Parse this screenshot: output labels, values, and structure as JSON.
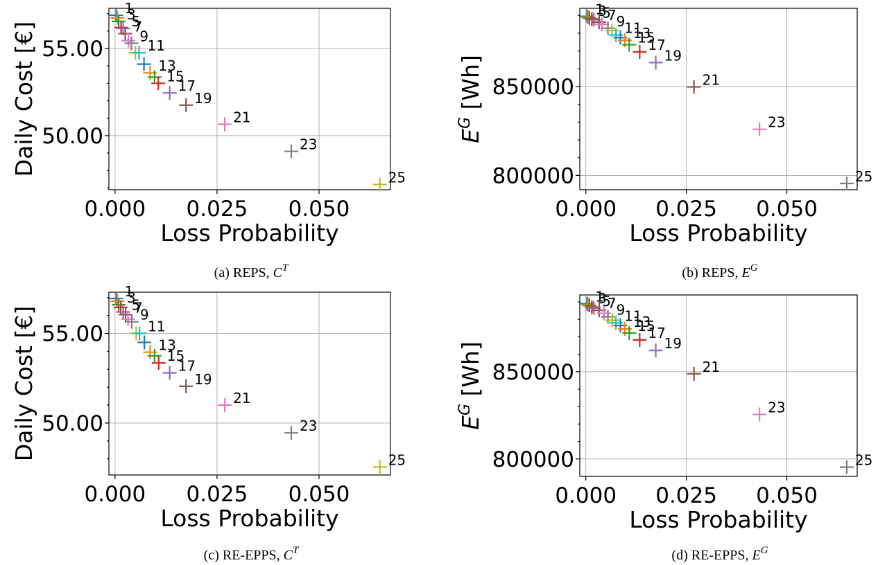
{
  "colors": {
    "palette": [
      "#1f77b4",
      "#ff7f0e",
      "#2ca02c",
      "#d62728",
      "#9467bd",
      "#8c564b",
      "#e377c2",
      "#7f7f7f",
      "#bcbd22",
      "#17becf"
    ]
  },
  "chart_data": [
    {
      "type": "scatter",
      "marker": "plus",
      "caption_text": "(a) REPS, ",
      "caption_sym": "C",
      "caption_sup": "T",
      "xlabel": "Loss Probability",
      "ylabel_text": "Daily Cost [€]",
      "ylabel_sym": "",
      "ylabel_sup": "",
      "ylabel_rest": "",
      "xlim": [
        -0.0015,
        0.0675
      ],
      "ylim": [
        46.9,
        57.3
      ],
      "xticks": [
        0.0,
        0.025,
        0.05
      ],
      "xtick_labels": [
        "0.000",
        "0.025",
        "0.050"
      ],
      "yticks": [
        50,
        55
      ],
      "ytick_labels": [
        "50.00",
        "55.00"
      ],
      "minor_yticks": [
        47,
        48,
        49,
        51,
        52,
        53,
        54,
        56,
        57
      ],
      "points": [
        {
          "label": "1",
          "x": 0.0003,
          "y": 56.9
        },
        {
          "label": "",
          "x": 0.0006,
          "y": 56.75
        },
        {
          "label": "3",
          "x": 0.0009,
          "y": 56.55
        },
        {
          "label": "",
          "x": 0.0015,
          "y": 56.2
        },
        {
          "label": "5",
          "x": 0.002,
          "y": 56.15
        },
        {
          "label": "7",
          "x": 0.0025,
          "y": 55.85
        },
        {
          "label": "",
          "x": 0.0033,
          "y": 55.45
        },
        {
          "label": "9",
          "x": 0.004,
          "y": 55.3
        },
        {
          "label": "",
          "x": 0.005,
          "y": 54.75
        },
        {
          "label": "11",
          "x": 0.0059,
          "y": 54.75
        },
        {
          "label": "",
          "x": 0.0071,
          "y": 54.1
        },
        {
          "label": "13",
          "x": 0.0086,
          "y": 53.6
        },
        {
          "label": "",
          "x": 0.0097,
          "y": 53.35
        },
        {
          "label": "15",
          "x": 0.0106,
          "y": 53.0
        },
        {
          "label": "17",
          "x": 0.0134,
          "y": 52.45
        },
        {
          "label": "19",
          "x": 0.0174,
          "y": 51.75
        },
        {
          "label": "21",
          "x": 0.0269,
          "y": 50.65
        },
        {
          "label": "23",
          "x": 0.0432,
          "y": 49.1
        },
        {
          "label": "25",
          "x": 0.0649,
          "y": 47.2
        }
      ]
    },
    {
      "type": "scatter",
      "marker": "plus",
      "caption_text": "(b) REPS, ",
      "caption_sym": "E",
      "caption_sup": "G",
      "xlabel": "Loss Probability",
      "ylabel_text": "",
      "ylabel_sym": "E",
      "ylabel_sup": "G",
      "ylabel_rest": " [Wh]",
      "xlim": [
        -0.0015,
        0.0675
      ],
      "ylim": [
        792000,
        894000
      ],
      "xticks": [
        0.0,
        0.025,
        0.05
      ],
      "xtick_labels": [
        "0.000",
        "0.025",
        "0.050"
      ],
      "yticks": [
        800000,
        850000
      ],
      "ytick_labels": [
        "800000",
        "850000"
      ],
      "minor_yticks": [
        810000,
        820000,
        830000,
        840000,
        860000,
        870000,
        880000,
        890000
      ],
      "points": [
        {
          "label": "1",
          "x": 0.0003,
          "y": 889500
        },
        {
          "label": "",
          "x": 0.0006,
          "y": 889000
        },
        {
          "label": "3",
          "x": 0.0009,
          "y": 888500
        },
        {
          "label": "",
          "x": 0.0015,
          "y": 888000
        },
        {
          "label": "5",
          "x": 0.002,
          "y": 887500
        },
        {
          "label": "7",
          "x": 0.0033,
          "y": 886200
        },
        {
          "label": "",
          "x": 0.004,
          "y": 885000
        },
        {
          "label": "9",
          "x": 0.0055,
          "y": 882800
        },
        {
          "label": "",
          "x": 0.0065,
          "y": 881500
        },
        {
          "label": "11",
          "x": 0.0075,
          "y": 879000
        },
        {
          "label": "",
          "x": 0.0086,
          "y": 877500
        },
        {
          "label": "13",
          "x": 0.0097,
          "y": 876000
        },
        {
          "label": "15",
          "x": 0.0108,
          "y": 873500
        },
        {
          "label": "17",
          "x": 0.0134,
          "y": 869500
        },
        {
          "label": "19",
          "x": 0.0174,
          "y": 863500
        },
        {
          "label": "21",
          "x": 0.0269,
          "y": 849800
        },
        {
          "label": "23",
          "x": 0.0432,
          "y": 826000
        },
        {
          "label": "25",
          "x": 0.0649,
          "y": 795500
        }
      ]
    },
    {
      "type": "scatter",
      "marker": "plus",
      "caption_text": "(c) RE-EPPS, ",
      "caption_sym": "C",
      "caption_sup": "T",
      "xlabel": "Loss Probability",
      "ylabel_text": "Daily Cost [€]",
      "ylabel_sym": "",
      "ylabel_sup": "",
      "ylabel_rest": "",
      "xlim": [
        -0.0015,
        0.0675
      ],
      "ylim": [
        47.1,
        57.3
      ],
      "xticks": [
        0.0,
        0.025,
        0.05
      ],
      "xtick_labels": [
        "0.000",
        "0.025",
        "0.050"
      ],
      "yticks": [
        50,
        55
      ],
      "ytick_labels": [
        "50.00",
        "55.00"
      ],
      "minor_yticks": [
        48,
        49,
        51,
        52,
        53,
        54,
        56,
        57
      ],
      "points": [
        {
          "label": "1",
          "x": 0.0003,
          "y": 56.95
        },
        {
          "label": "",
          "x": 0.0006,
          "y": 56.8
        },
        {
          "label": "3",
          "x": 0.0009,
          "y": 56.6
        },
        {
          "label": "",
          "x": 0.0014,
          "y": 56.45
        },
        {
          "label": "5",
          "x": 0.002,
          "y": 56.2
        },
        {
          "label": "7",
          "x": 0.0026,
          "y": 56.05
        },
        {
          "label": "",
          "x": 0.0032,
          "y": 55.8
        },
        {
          "label": "9",
          "x": 0.0041,
          "y": 55.65
        },
        {
          "label": "",
          "x": 0.0052,
          "y": 55.0
        },
        {
          "label": "11",
          "x": 0.006,
          "y": 55.0
        },
        {
          "label": "",
          "x": 0.0072,
          "y": 54.5
        },
        {
          "label": "13",
          "x": 0.0086,
          "y": 53.95
        },
        {
          "label": "",
          "x": 0.0097,
          "y": 53.75
        },
        {
          "label": "15",
          "x": 0.0107,
          "y": 53.35
        },
        {
          "label": "17",
          "x": 0.0134,
          "y": 52.8
        },
        {
          "label": "19",
          "x": 0.0174,
          "y": 52.05
        },
        {
          "label": "21",
          "x": 0.0269,
          "y": 51.0
        },
        {
          "label": "23",
          "x": 0.0432,
          "y": 49.45
        },
        {
          "label": "25",
          "x": 0.0649,
          "y": 47.55
        }
      ]
    },
    {
      "type": "scatter",
      "marker": "plus",
      "caption_text": "(d) RE-EPPS, ",
      "caption_sym": "E",
      "caption_sup": "G",
      "xlabel": "Loss Probability",
      "ylabel_text": "",
      "ylabel_sym": "E",
      "ylabel_sup": "G",
      "ylabel_rest": " [Wh]",
      "xlim": [
        -0.0015,
        0.0675
      ],
      "ylim": [
        790000,
        894000
      ],
      "xticks": [
        0.0,
        0.025,
        0.05
      ],
      "xtick_labels": [
        "0.000",
        "0.025",
        "0.050"
      ],
      "yticks": [
        800000,
        850000
      ],
      "ytick_labels": [
        "800000",
        "850000"
      ],
      "minor_yticks": [
        810000,
        820000,
        830000,
        840000,
        860000,
        870000,
        880000,
        890000
      ],
      "points": [
        {
          "label": "1",
          "x": 0.0003,
          "y": 889000
        },
        {
          "label": "",
          "x": 0.0006,
          "y": 888500
        },
        {
          "label": "3",
          "x": 0.0009,
          "y": 888000
        },
        {
          "label": "",
          "x": 0.0015,
          "y": 887000
        },
        {
          "label": "5",
          "x": 0.002,
          "y": 886500
        },
        {
          "label": "7",
          "x": 0.0033,
          "y": 885200
        },
        {
          "label": "",
          "x": 0.0045,
          "y": 883500
        },
        {
          "label": "9",
          "x": 0.0055,
          "y": 881500
        },
        {
          "label": "",
          "x": 0.0066,
          "y": 879500
        },
        {
          "label": "11",
          "x": 0.0075,
          "y": 878000
        },
        {
          "label": "",
          "x": 0.0086,
          "y": 876500
        },
        {
          "label": "13",
          "x": 0.0097,
          "y": 874500
        },
        {
          "label": "15",
          "x": 0.0108,
          "y": 872200
        },
        {
          "label": "17",
          "x": 0.0134,
          "y": 868200
        },
        {
          "label": "19",
          "x": 0.0174,
          "y": 862200
        },
        {
          "label": "21",
          "x": 0.0269,
          "y": 848800
        },
        {
          "label": "23",
          "x": 0.0432,
          "y": 825500
        },
        {
          "label": "25",
          "x": 0.0649,
          "y": 795300
        }
      ]
    }
  ]
}
